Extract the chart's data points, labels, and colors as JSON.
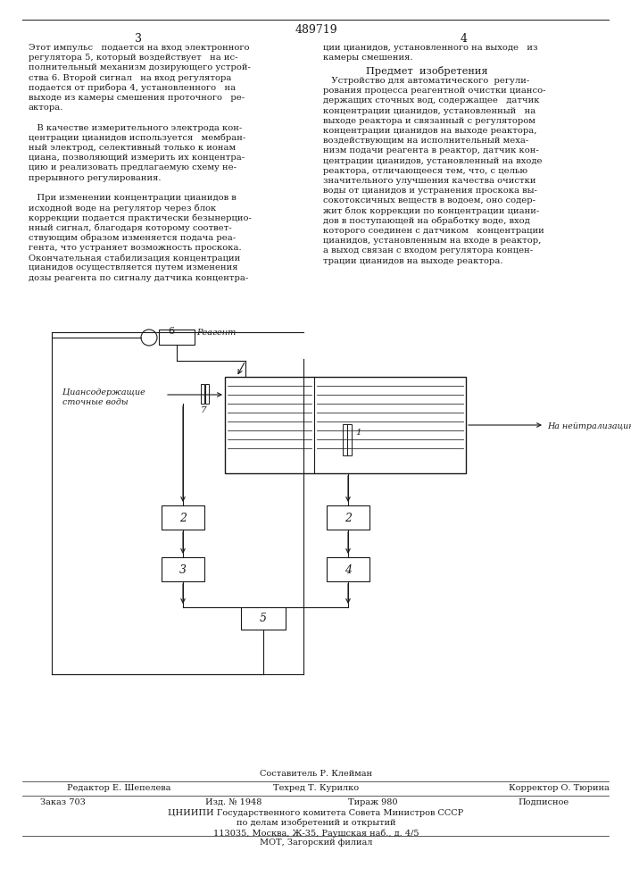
{
  "patent_number": "489719",
  "page_left": "3",
  "page_right": "4",
  "bg_color": "#ffffff",
  "text_color": "#1a1a1a",
  "footer_compositor": "Составитель Р. Клейман",
  "footer_editor": "Редактор Е. Шепелева",
  "footer_techred": "Техред Т. Курилко",
  "footer_corrector": "Корректор О. Тюрина",
  "footer_order": "Заказ 703",
  "footer_izd": "Изд. № 1948",
  "footer_tirazh": "Тираж 980",
  "footer_podpisnoe": "Подписное",
  "footer_tsniipi": "ЦНИИПИ Государственного комитета Совета Министров СССР",
  "footer_delam": "по делам изобретений и открытий",
  "footer_address": "113035, Москва, Ж-35, Раушская наб., д. 4/5",
  "footer_mot": "МОТ, Загорский филиал"
}
